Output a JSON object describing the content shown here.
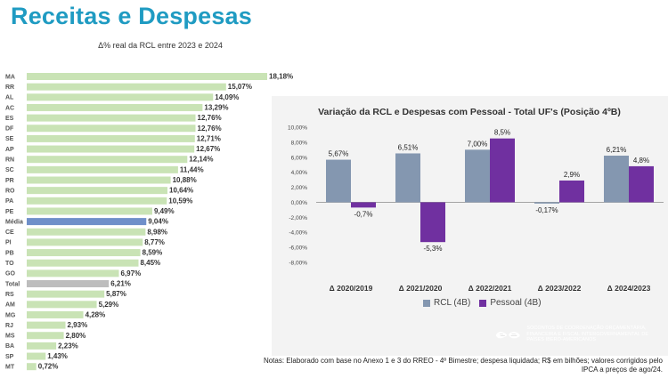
{
  "page": {
    "title": "Receitas e Despesas",
    "notes": "Notas: Elaborado com base no Anexo 1 e 3 do RREO - 4º Bimestre; despesa liquidada; R$ em bilhões; valores corrigidos pelo IPCA a preços de ago/24.",
    "logo_text": "SOCONTOS DE COORDENAÇÃO ORÇAMENTÁRIA, FINANCEIRA E FISCAL INTERGOVERNAMENTAL DE PAÍSES IBERO-AMERICANOS"
  },
  "chart_data": [
    {
      "type": "bar",
      "orientation": "horizontal",
      "title": "Δ% real da RCL entre 2023 e 2024",
      "categories": [
        "MA",
        "RR",
        "AL",
        "AC",
        "ES",
        "DF",
        "SE",
        "AP",
        "RN",
        "SC",
        "PR",
        "RO",
        "PA",
        "PE",
        "Média",
        "CE",
        "PI",
        "PB",
        "TO",
        "GO",
        "Total",
        "RS",
        "AM",
        "MG",
        "RJ",
        "MS",
        "BA",
        "SP",
        "MT"
      ],
      "values": [
        18.18,
        15.07,
        14.09,
        13.29,
        12.76,
        12.76,
        12.71,
        12.67,
        12.14,
        11.44,
        10.88,
        10.64,
        10.59,
        9.49,
        9.04,
        8.98,
        8.77,
        8.59,
        8.45,
        6.97,
        6.21,
        5.87,
        5.29,
        4.28,
        2.93,
        2.8,
        2.23,
        1.43,
        0.72
      ],
      "value_labels": [
        "18,18%",
        "15,07%",
        "14,09%",
        "13,29%",
        "12,76%",
        "12,76%",
        "12,71%",
        "12,67%",
        "12,14%",
        "11,44%",
        "10,88%",
        "10,64%",
        "10,59%",
        "9,49%",
        "9,04%",
        "8,98%",
        "8,77%",
        "8,59%",
        "8,45%",
        "6,97%",
        "6,21%",
        "5,87%",
        "5,29%",
        "4,28%",
        "2,93%",
        "2,80%",
        "2,23%",
        "1,43%",
        "0,72%"
      ],
      "colors": {
        "default": "#c9e3b5",
        "Média": "#6f8fc9",
        "Total": "#bdbdbd"
      }
    },
    {
      "type": "bar",
      "title": "Variação da RCL e Despesas com Pessoal - Total UF's (Posição 4ºB)",
      "categories": [
        "Δ 2020/2019",
        "Δ 2021/2020",
        "Δ 2022/2021",
        "Δ 2023/2022",
        "Δ 2024/2023"
      ],
      "ylim": [
        -8,
        10
      ],
      "yticks": [
        -8,
        -6,
        -4,
        -2,
        0,
        2,
        4,
        6,
        8,
        10
      ],
      "ytick_labels": [
        "-8,00%",
        "-6,00%",
        "-4,00%",
        "-2,00%",
        "0,00%",
        "2,00%",
        "4,00%",
        "6,00%",
        "8,00%",
        "10,00%"
      ],
      "legend_position": "bottom",
      "series": [
        {
          "name": "RCL (4B)",
          "color": "#8497b0",
          "values": [
            5.67,
            6.51,
            7.0,
            -0.17,
            6.21
          ],
          "labels": [
            "5,67%",
            "6,51%",
            "7,00%",
            "-0,17%",
            "6,21%"
          ]
        },
        {
          "name": "Pessoal (4B)",
          "color": "#7030a0",
          "values": [
            -0.7,
            -5.3,
            8.5,
            2.9,
            4.8
          ],
          "labels": [
            "-0,7%",
            "-5,3%",
            "8,5%",
            "2,9%",
            "4,8%"
          ]
        }
      ]
    }
  ]
}
